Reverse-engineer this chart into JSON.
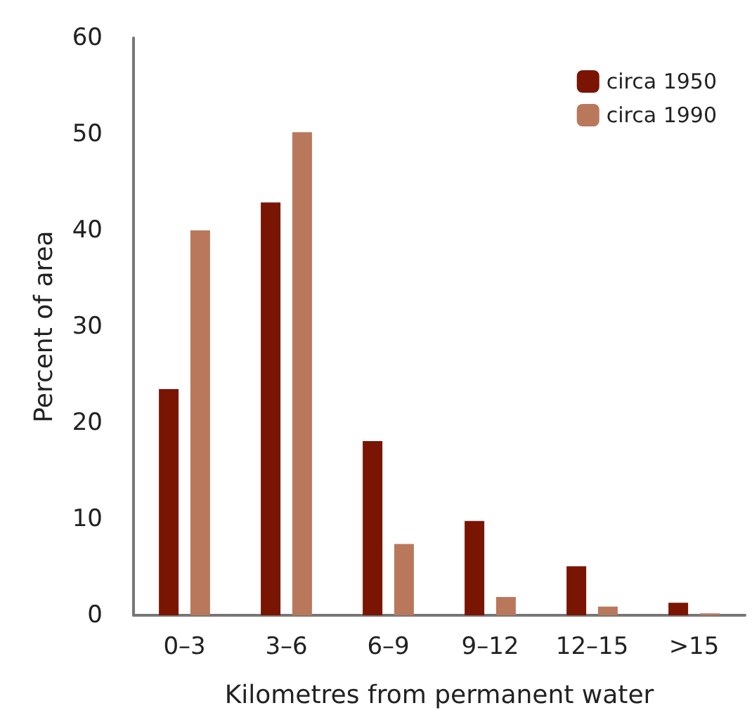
{
  "chart_data": {
    "type": "bar",
    "xlabel": "Kilometres from permanent water",
    "ylabel": "Percent of area",
    "categories": [
      "0–3",
      "3–6",
      "6–9",
      "9–12",
      "12–15",
      ">15"
    ],
    "series": [
      {
        "name": "circa 1950",
        "color": "#7a1503",
        "values": [
          23.5,
          42.9,
          18.1,
          9.8,
          5.1,
          1.3
        ]
      },
      {
        "name": "circa 1990",
        "color": "#b9785c",
        "values": [
          40,
          50.2,
          7.4,
          1.9,
          0.9,
          0.2
        ]
      }
    ],
    "ylim": [
      0,
      60
    ],
    "yticks": [
      0,
      10,
      20,
      30,
      40,
      50,
      60
    ],
    "grid": false,
    "legend": "top right"
  }
}
